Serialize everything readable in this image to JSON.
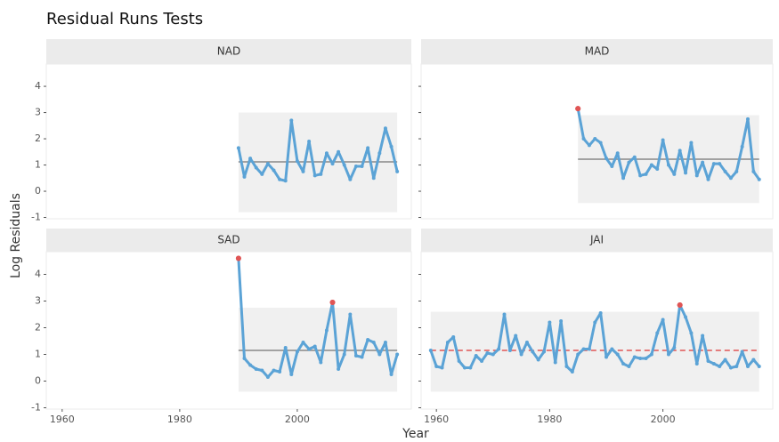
{
  "chart_data": {
    "type": "line",
    "title": "Residual Runs Tests",
    "x_label": "Year",
    "y_label": "Log Residuals",
    "xlim": [
      1957.3,
      2019.4
    ],
    "xticks": [
      1960,
      1980,
      2000
    ],
    "ylim": [
      -1.05,
      4.85
    ],
    "yticks": [
      -1,
      0,
      1,
      2,
      3,
      4
    ],
    "color": "#5ba3d6",
    "highlight_color": "#e05555",
    "box_color": "#f0f0f0",
    "panels": [
      {
        "name": "NAD",
        "x": [
          1990,
          1991,
          1992,
          1993,
          1994,
          1995,
          1996,
          1997,
          1998,
          1999,
          2000,
          2001,
          2002,
          2003,
          2004,
          2005,
          2006,
          2007,
          2008,
          2009,
          2010,
          2011,
          2012,
          2013,
          2014,
          2015,
          2016,
          2017
        ],
        "values": [
          1.65,
          0.55,
          1.25,
          0.9,
          0.65,
          1.05,
          0.8,
          0.45,
          0.4,
          2.7,
          1.15,
          0.75,
          1.9,
          0.6,
          0.65,
          1.45,
          1.05,
          1.5,
          1.0,
          0.45,
          0.95,
          0.95,
          1.65,
          0.5,
          1.45,
          2.4,
          1.7,
          0.75
        ],
        "outliers": [],
        "box_xlim": [
          1990,
          2017
        ],
        "box_ylim": [
          -0.8,
          3.0
        ],
        "center": 1.12,
        "center_style": "solid",
        "center_color": "#888888"
      },
      {
        "name": "MAD",
        "x": [
          1985,
          1986,
          1987,
          1988,
          1989,
          1990,
          1991,
          1992,
          1993,
          1994,
          1995,
          1996,
          1997,
          1998,
          1999,
          2000,
          2001,
          2002,
          2003,
          2004,
          2005,
          2006,
          2007,
          2008,
          2009,
          2010,
          2011,
          2012,
          2013,
          2014,
          2015,
          2016,
          2017
        ],
        "values": [
          3.15,
          2.0,
          1.75,
          2.0,
          1.85,
          1.25,
          0.95,
          1.45,
          0.5,
          1.1,
          1.3,
          0.6,
          0.65,
          1.0,
          0.85,
          1.95,
          1.0,
          0.65,
          1.55,
          0.7,
          1.85,
          0.6,
          1.1,
          0.45,
          1.05,
          1.05,
          0.75,
          0.5,
          0.75,
          1.7,
          2.75,
          0.75,
          0.45
        ],
        "outliers": [
          1985
        ],
        "box_xlim": [
          1985,
          2017
        ],
        "box_ylim": [
          -0.45,
          2.9
        ],
        "center": 1.22,
        "center_style": "solid",
        "center_color": "#888888"
      },
      {
        "name": "SAD",
        "x": [
          1990,
          1991,
          1992,
          1993,
          1994,
          1995,
          1996,
          1997,
          1998,
          1999,
          2000,
          2001,
          2002,
          2003,
          2004,
          2005,
          2006,
          2007,
          2008,
          2009,
          2010,
          2011,
          2012,
          2013,
          2014,
          2015,
          2016,
          2017
        ],
        "values": [
          4.6,
          0.85,
          0.6,
          0.45,
          0.4,
          0.15,
          0.4,
          0.35,
          1.25,
          0.25,
          1.1,
          1.45,
          1.2,
          1.3,
          0.7,
          1.9,
          2.95,
          0.45,
          1.0,
          2.5,
          0.95,
          0.9,
          1.55,
          1.45,
          1.0,
          1.45,
          0.25,
          1.0
        ],
        "outliers": [
          1990,
          2006
        ],
        "box_xlim": [
          1990,
          2017
        ],
        "box_ylim": [
          -0.4,
          2.75
        ],
        "center": 1.15,
        "center_style": "solid",
        "center_color": "#888888"
      },
      {
        "name": "JAI",
        "x": [
          1959,
          1960,
          1961,
          1962,
          1963,
          1964,
          1965,
          1966,
          1967,
          1968,
          1969,
          1970,
          1971,
          1972,
          1973,
          1974,
          1975,
          1976,
          1977,
          1978,
          1979,
          1980,
          1981,
          1982,
          1983,
          1984,
          1985,
          1986,
          1987,
          1988,
          1989,
          1990,
          1991,
          1992,
          1993,
          1994,
          1995,
          1996,
          1997,
          1998,
          1999,
          2000,
          2001,
          2002,
          2003,
          2004,
          2005,
          2006,
          2007,
          2008,
          2009,
          2010,
          2011,
          2012,
          2013,
          2014,
          2015,
          2016,
          2017
        ],
        "values": [
          1.15,
          0.55,
          0.5,
          1.45,
          1.65,
          0.75,
          0.5,
          0.5,
          0.95,
          0.75,
          1.05,
          1.0,
          1.2,
          2.5,
          1.15,
          1.7,
          1.0,
          1.45,
          1.1,
          0.8,
          1.1,
          2.2,
          0.7,
          2.25,
          0.55,
          0.35,
          1.0,
          1.2,
          1.2,
          2.2,
          2.55,
          0.9,
          1.2,
          1.0,
          0.65,
          0.55,
          0.9,
          0.85,
          0.85,
          1.0,
          1.8,
          2.3,
          1.0,
          1.25,
          2.85,
          2.4,
          1.8,
          0.65,
          1.7,
          0.75,
          0.65,
          0.55,
          0.8,
          0.5,
          0.55,
          1.1,
          0.55,
          0.8,
          0.55
        ],
        "outliers": [
          2003
        ],
        "box_xlim": [
          1959,
          2017
        ],
        "box_ylim": [
          -0.4,
          2.6
        ],
        "center": 1.15,
        "center_style": "dashed",
        "center_color": "#e05555"
      }
    ]
  }
}
